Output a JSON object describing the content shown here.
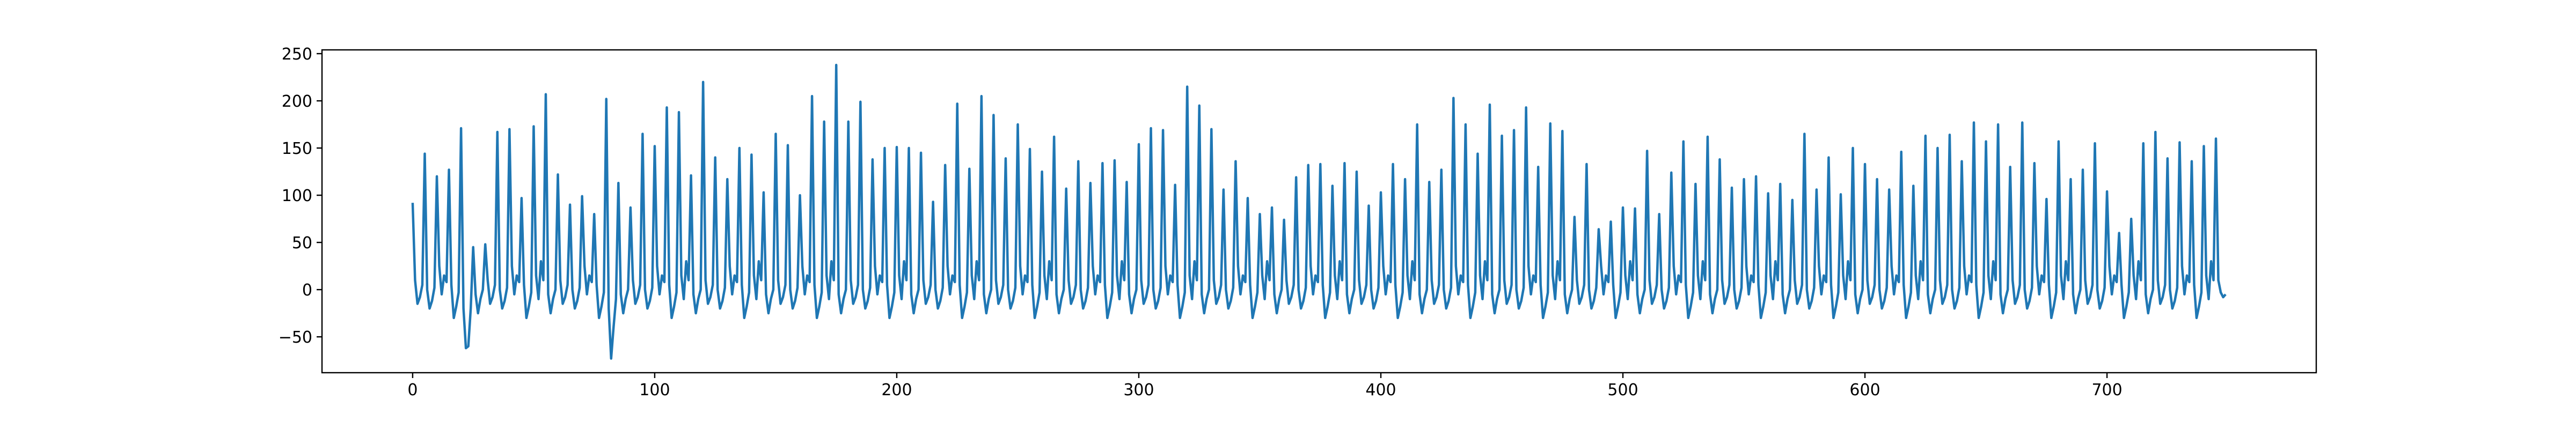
{
  "chart_data": {
    "type": "line",
    "color": "#1f77b4",
    "xlim": [
      -37.45,
      786.45
    ],
    "ylim": [
      -88,
      254
    ],
    "xticks": [
      0,
      100,
      200,
      300,
      400,
      500,
      600,
      700
    ],
    "yticks": [
      {
        "value": -50,
        "label": "−50"
      },
      0,
      50,
      100,
      150,
      200,
      250
    ],
    "x": [
      0,
      1,
      2,
      3,
      4,
      5,
      6,
      7,
      8,
      9,
      10,
      11,
      12,
      13,
      14,
      15,
      16,
      17,
      18,
      19,
      20,
      21,
      22,
      23,
      24,
      25,
      26,
      27,
      28,
      29,
      30,
      31,
      32,
      33,
      34,
      35,
      36,
      37,
      38,
      39,
      40,
      41,
      42,
      43,
      44,
      45,
      46,
      47,
      48,
      49,
      50,
      51,
      52,
      53,
      54,
      55,
      56,
      57,
      58,
      59,
      60,
      61,
      62,
      63,
      64,
      65,
      66,
      67,
      68,
      69,
      70,
      71,
      72,
      73,
      74,
      75,
      76,
      77,
      78,
      79,
      80,
      81,
      82,
      83,
      84,
      85,
      86,
      87,
      88,
      89,
      90,
      91,
      92,
      93,
      94,
      95,
      96,
      97,
      98,
      99,
      100,
      101,
      102,
      103,
      104,
      105,
      106,
      107,
      108,
      109,
      110,
      111,
      112,
      113,
      114,
      115,
      116,
      117,
      118,
      119,
      120,
      121,
      122,
      123,
      124,
      125,
      126,
      127,
      128,
      129,
      130,
      131,
      132,
      133,
      134,
      135,
      136,
      137,
      138,
      139,
      140,
      141,
      142,
      143,
      144,
      145,
      146,
      147,
      148,
      149,
      150,
      151,
      152,
      153,
      154,
      155,
      156,
      157,
      158,
      159,
      160,
      161,
      162,
      163,
      164,
      165,
      166,
      167,
      168,
      169,
      170,
      171,
      172,
      173,
      174,
      175,
      176,
      177,
      178,
      179,
      180,
      181,
      182,
      183,
      184,
      185,
      186,
      187,
      188,
      189,
      190,
      191,
      192,
      193,
      194,
      195,
      196,
      197,
      198,
      199,
      200,
      201,
      202,
      203,
      204,
      205,
      206,
      207,
      208,
      209,
      210,
      211,
      212,
      213,
      214,
      215,
      216,
      217,
      218,
      219,
      220,
      221,
      222,
      223,
      224,
      225,
      226,
      227,
      228,
      229,
      230,
      231,
      232,
      233,
      234,
      235,
      236,
      237,
      238,
      239,
      240,
      241,
      242,
      243,
      244,
      245,
      246,
      247,
      248,
      249,
      250,
      251,
      252,
      253,
      254,
      255,
      256,
      257,
      258,
      259,
      260,
      261,
      262,
      263,
      264,
      265,
      266,
      267,
      268,
      269,
      270,
      271,
      272,
      273,
      274,
      275,
      276,
      277,
      278,
      279,
      280,
      281,
      282,
      283,
      284,
      285,
      286,
      287,
      288,
      289,
      290,
      291,
      292,
      293,
      294,
      295,
      296,
      297,
      298,
      299,
      300,
      301,
      302,
      303,
      304,
      305,
      306,
      307,
      308,
      309,
      310,
      311,
      312,
      313,
      314,
      315,
      316,
      317,
      318,
      319,
      320,
      321,
      322,
      323,
      324,
      325,
      326,
      327,
      328,
      329,
      330,
      331,
      332,
      333,
      334,
      335,
      336,
      337,
      338,
      339,
      340,
      341,
      342,
      343,
      344,
      345,
      346,
      347,
      348,
      349,
      350,
      351,
      352,
      353,
      354,
      355,
      356,
      357,
      358,
      359,
      360,
      361,
      362,
      363,
      364,
      365,
      366,
      367,
      368,
      369,
      370,
      371,
      372,
      373,
      374,
      375,
      376,
      377,
      378,
      379,
      380,
      381,
      382,
      383,
      384,
      385,
      386,
      387,
      388,
      389,
      390,
      391,
      392,
      393,
      394,
      395,
      396,
      397,
      398,
      399,
      400,
      401,
      402,
      403,
      404,
      405,
      406,
      407,
      408,
      409,
      410,
      411,
      412,
      413,
      414,
      415,
      416,
      417,
      418,
      419,
      420,
      421,
      422,
      423,
      424,
      425,
      426,
      427,
      428,
      429,
      430,
      431,
      432,
      433,
      434,
      435,
      436,
      437,
      438,
      439,
      440,
      441,
      442,
      443,
      444,
      445,
      446,
      447,
      448,
      449,
      450,
      451,
      452,
      453,
      454,
      455,
      456,
      457,
      458,
      459,
      460,
      461,
      462,
      463,
      464,
      465,
      466,
      467,
      468,
      469,
      470,
      471,
      472,
      473,
      474,
      475,
      476,
      477,
      478,
      479,
      480,
      481,
      482,
      483,
      484,
      485,
      486,
      487,
      488,
      489,
      490,
      491,
      492,
      493,
      494,
      495,
      496,
      497,
      498,
      499,
      500,
      501,
      502,
      503,
      504,
      505,
      506,
      507,
      508,
      509,
      510,
      511,
      512,
      513,
      514,
      515,
      516,
      517,
      518,
      519,
      520,
      521,
      522,
      523,
      524,
      525,
      526,
      527,
      528,
      529,
      530,
      531,
      532,
      533,
      534,
      535,
      536,
      537,
      538,
      539,
      540,
      541,
      542,
      543,
      544,
      545,
      546,
      547,
      548,
      549,
      550,
      551,
      552,
      553,
      554,
      555,
      556,
      557,
      558,
      559,
      560,
      561,
      562,
      563,
      564,
      565,
      566,
      567,
      568,
      569,
      570,
      571,
      572,
      573,
      574,
      575,
      576,
      577,
      578,
      579,
      580,
      581,
      582,
      583,
      584,
      585,
      586,
      587,
      588,
      589,
      590,
      591,
      592,
      593,
      594,
      595,
      596,
      597,
      598,
      599,
      600,
      601,
      602,
      603,
      604,
      605,
      606,
      607,
      608,
      609,
      610,
      611,
      612,
      613,
      614,
      615,
      616,
      617,
      618,
      619,
      620,
      621,
      622,
      623,
      624,
      625,
      626,
      627,
      628,
      629,
      630,
      631,
      632,
      633,
      634,
      635,
      636,
      637,
      638,
      639,
      640,
      641,
      642,
      643,
      644,
      645,
      646,
      647,
      648,
      649,
      650,
      651,
      652,
      653,
      654,
      655,
      656,
      657,
      658,
      659,
      660,
      661,
      662,
      663,
      664,
      665,
      666,
      667,
      668,
      669,
      670,
      671,
      672,
      673,
      674,
      675,
      676,
      677,
      678,
      679,
      680,
      681,
      682,
      683,
      684,
      685,
      686,
      687,
      688,
      689,
      690,
      691,
      692,
      693,
      694,
      695,
      696,
      697,
      698,
      699,
      700,
      701,
      702,
      703,
      704,
      705,
      706,
      707,
      708,
      709,
      710,
      711,
      712,
      713,
      714,
      715,
      716,
      717,
      718,
      719,
      720,
      721,
      722,
      723,
      724,
      725,
      726,
      727,
      728,
      729,
      730,
      731,
      732,
      733,
      734,
      735,
      736,
      737,
      738,
      739,
      740,
      741,
      742,
      743,
      744,
      745,
      746,
      747,
      748,
      749
    ],
    "values": [
      92,
      10,
      -15,
      -8,
      5,
      144,
      0,
      -20,
      -12,
      2,
      120,
      25,
      -5,
      15,
      8,
      127,
      5,
      -30,
      -18,
      -3,
      171,
      -20,
      -62,
      -60,
      -20,
      45,
      -5,
      -25,
      -10,
      0,
      48,
      10,
      -15,
      -8,
      5,
      167,
      0,
      -20,
      -12,
      2,
      170,
      25,
      -5,
      15,
      8,
      97,
      5,
      -30,
      -18,
      -3,
      173,
      15,
      -10,
      30,
      10,
      207,
      -5,
      -25,
      -10,
      0,
      122,
      10,
      -15,
      -8,
      5,
      90,
      0,
      -20,
      -12,
      2,
      99,
      25,
      -5,
      15,
      8,
      80,
      5,
      -30,
      -18,
      -3,
      202,
      -20,
      -73,
      -40,
      -10,
      113,
      -5,
      -25,
      -10,
      0,
      87,
      10,
      -15,
      -8,
      5,
      165,
      0,
      -20,
      -12,
      2,
      152,
      25,
      -5,
      15,
      8,
      193,
      5,
      -30,
      -18,
      -3,
      188,
      15,
      -10,
      30,
      10,
      121,
      -5,
      -25,
      -10,
      0,
      220,
      10,
      -15,
      -8,
      5,
      140,
      0,
      -20,
      -12,
      2,
      117,
      25,
      -5,
      15,
      8,
      150,
      5,
      -30,
      -18,
      -3,
      143,
      15,
      -10,
      30,
      10,
      103,
      -5,
      -25,
      -10,
      0,
      165,
      10,
      -15,
      -8,
      5,
      153,
      0,
      -20,
      -12,
      2,
      100,
      25,
      -5,
      15,
      8,
      205,
      5,
      -30,
      -18,
      -3,
      178,
      15,
      -10,
      30,
      10,
      238,
      -5,
      -25,
      -10,
      0,
      178,
      10,
      -15,
      -8,
      5,
      199,
      0,
      -20,
      -12,
      2,
      138,
      25,
      -5,
      15,
      8,
      150,
      5,
      -30,
      -18,
      -3,
      151,
      15,
      -10,
      30,
      10,
      150,
      -5,
      -25,
      -10,
      0,
      145,
      10,
      -15,
      -8,
      5,
      93,
      0,
      -20,
      -12,
      2,
      132,
      25,
      -5,
      15,
      8,
      197,
      5,
      -30,
      -18,
      -3,
      128,
      15,
      -10,
      30,
      10,
      205,
      -5,
      -25,
      -10,
      0,
      185,
      10,
      -15,
      -8,
      5,
      139,
      0,
      -20,
      -12,
      2,
      175,
      25,
      -5,
      15,
      8,
      149,
      5,
      -30,
      -18,
      -3,
      125,
      15,
      -10,
      30,
      10,
      162,
      -5,
      -25,
      -10,
      0,
      107,
      10,
      -15,
      -8,
      5,
      136,
      0,
      -20,
      -12,
      2,
      113,
      25,
      -5,
      15,
      8,
      134,
      5,
      -30,
      -18,
      -3,
      137,
      15,
      -10,
      30,
      10,
      114,
      -5,
      -25,
      -10,
      0,
      154,
      10,
      -15,
      -8,
      5,
      171,
      0,
      -20,
      -12,
      2,
      169,
      25,
      -5,
      15,
      8,
      111,
      5,
      -30,
      -18,
      -3,
      215,
      15,
      -10,
      30,
      10,
      195,
      -5,
      -25,
      -10,
      0,
      170,
      10,
      -15,
      -8,
      5,
      106,
      0,
      -20,
      -12,
      2,
      136,
      25,
      -5,
      15,
      8,
      97,
      5,
      -30,
      -18,
      -3,
      80,
      15,
      -10,
      30,
      10,
      87,
      -5,
      -25,
      -10,
      0,
      74,
      10,
      -15,
      -8,
      5,
      119,
      0,
      -20,
      -12,
      2,
      132,
      25,
      -5,
      15,
      8,
      133,
      5,
      -30,
      -18,
      -3,
      110,
      15,
      -10,
      30,
      10,
      134,
      -5,
      -25,
      -10,
      0,
      125,
      10,
      -15,
      -8,
      5,
      89,
      0,
      -20,
      -12,
      2,
      103,
      25,
      -5,
      15,
      8,
      133,
      5,
      -30,
      -18,
      -3,
      117,
      15,
      -10,
      30,
      10,
      175,
      -5,
      -25,
      -10,
      0,
      114,
      10,
      -15,
      -8,
      5,
      127,
      0,
      -20,
      -12,
      2,
      203,
      25,
      -5,
      15,
      8,
      175,
      5,
      -30,
      -18,
      -3,
      144,
      15,
      -10,
      30,
      10,
      196,
      -5,
      -25,
      -10,
      0,
      163,
      10,
      -15,
      -8,
      5,
      169,
      0,
      -20,
      -12,
      2,
      193,
      25,
      -5,
      15,
      8,
      130,
      5,
      -30,
      -18,
      -3,
      176,
      15,
      -10,
      30,
      10,
      168,
      -5,
      -25,
      -10,
      0,
      77,
      10,
      -15,
      -8,
      5,
      133,
      0,
      -20,
      -12,
      2,
      64,
      25,
      -5,
      15,
      8,
      72,
      5,
      -30,
      -18,
      -3,
      87,
      15,
      -10,
      30,
      10,
      86,
      -5,
      -25,
      -10,
      0,
      147,
      10,
      -15,
      -8,
      5,
      80,
      0,
      -20,
      -12,
      2,
      124,
      25,
      -5,
      15,
      8,
      157,
      5,
      -30,
      -18,
      -3,
      112,
      15,
      -10,
      30,
      10,
      162,
      -5,
      -25,
      -10,
      0,
      138,
      10,
      -15,
      -8,
      5,
      108,
      0,
      -20,
      -12,
      2,
      117,
      25,
      -5,
      15,
      8,
      120,
      5,
      -30,
      -18,
      -3,
      102,
      15,
      -10,
      30,
      10,
      112,
      -5,
      -25,
      -10,
      0,
      95,
      10,
      -15,
      -8,
      5,
      165,
      0,
      -20,
      -12,
      2,
      106,
      25,
      -5,
      15,
      8,
      140,
      5,
      -30,
      -18,
      -3,
      101,
      15,
      -10,
      30,
      10,
      150,
      -5,
      -25,
      -10,
      0,
      133,
      10,
      -15,
      -8,
      5,
      117,
      0,
      -20,
      -12,
      2,
      106,
      25,
      -5,
      15,
      8,
      146,
      5,
      -30,
      -18,
      -3,
      110,
      15,
      -10,
      30,
      10,
      163,
      -5,
      -25,
      -10,
      0,
      150,
      10,
      -15,
      -8,
      5,
      164,
      0,
      -20,
      -12,
      2,
      136,
      25,
      -5,
      15,
      8,
      177,
      5,
      -30,
      -18,
      -3,
      157,
      15,
      -10,
      30,
      10,
      175,
      -5,
      -25,
      -10,
      0,
      130,
      10,
      -15,
      -8,
      5,
      177,
      0,
      -20,
      -12,
      2,
      134,
      25,
      -5,
      15,
      8,
      96,
      5,
      -30,
      -18,
      -3,
      157,
      15,
      -10,
      30,
      10,
      117,
      -5,
      -25,
      -10,
      0,
      127,
      10,
      -15,
      -8,
      5,
      155,
      0,
      -20,
      -12,
      2,
      104,
      25,
      -5,
      15,
      8,
      60,
      5,
      -30,
      -18,
      -3,
      75,
      15,
      -10,
      30,
      10,
      155,
      -5,
      -25,
      -10,
      0,
      167,
      10,
      -15,
      -8,
      5,
      139,
      0,
      -20,
      -12,
      2,
      156,
      25,
      -5,
      15,
      8,
      136,
      5,
      -30,
      -18,
      -3,
      152,
      15,
      -10,
      30,
      10,
      160,
      10,
      -3,
      -8,
      -5
    ]
  }
}
